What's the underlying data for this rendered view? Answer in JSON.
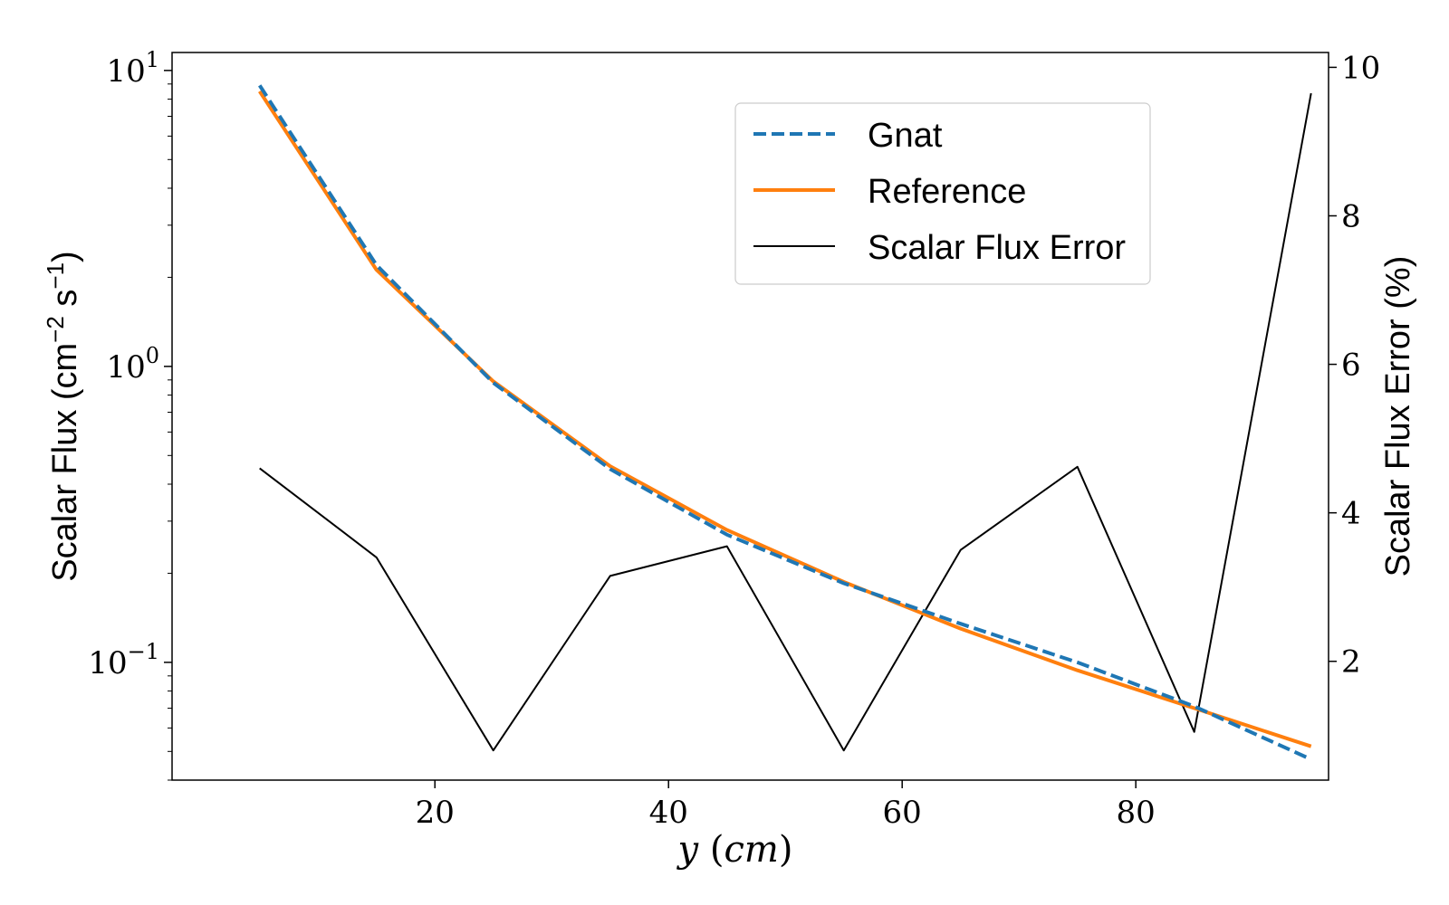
{
  "chart_data": {
    "type": "line",
    "xlabel": "y (cm)",
    "ylabel_left": "Scalar Flux (cm⁻² s⁻¹)",
    "ylabel_right": "Scalar Flux Error (%)",
    "x": [
      5,
      15,
      25,
      35,
      45,
      55,
      65,
      75,
      85,
      95
    ],
    "x_ticks": [
      "20",
      "40",
      "60",
      "80"
    ],
    "x_tick_values": [
      20,
      40,
      60,
      80
    ],
    "xlim": [
      -2.5,
      96.5
    ],
    "y_left_scale": "log",
    "y_left_lim": [
      0.04,
      11.5
    ],
    "y_left_ticks": [
      {
        "value": 10,
        "base": "10",
        "exp": "1"
      },
      {
        "value": 1,
        "base": "10",
        "exp": "0"
      },
      {
        "value": 0.1,
        "base": "10",
        "exp": "−1"
      }
    ],
    "y_right_lim": [
      0.4,
      10.2
    ],
    "y_right_ticks": [
      "2",
      "4",
      "6",
      "8",
      "10"
    ],
    "y_right_tick_values": [
      2,
      4,
      6,
      8,
      10
    ],
    "series": [
      {
        "name": "Gnat",
        "axis": "left",
        "style": "dashed",
        "color": "#1f77b4",
        "values": [
          8.9,
          2.2,
          0.88,
          0.45,
          0.27,
          0.185,
          0.135,
          0.1,
          0.071,
          0.047
        ]
      },
      {
        "name": "Reference",
        "axis": "left",
        "style": "solid",
        "color": "#ff7f0e",
        "values": [
          8.5,
          2.12,
          0.89,
          0.46,
          0.28,
          0.187,
          0.13,
          0.094,
          0.07,
          0.052
        ]
      },
      {
        "name": "Scalar Flux Error",
        "axis": "right",
        "style": "solid",
        "color": "#000000",
        "values": [
          4.6,
          3.4,
          0.8,
          3.15,
          3.55,
          0.8,
          3.5,
          4.62,
          1.05,
          9.65
        ]
      }
    ],
    "legend_position": "top-right",
    "grid": false
  }
}
